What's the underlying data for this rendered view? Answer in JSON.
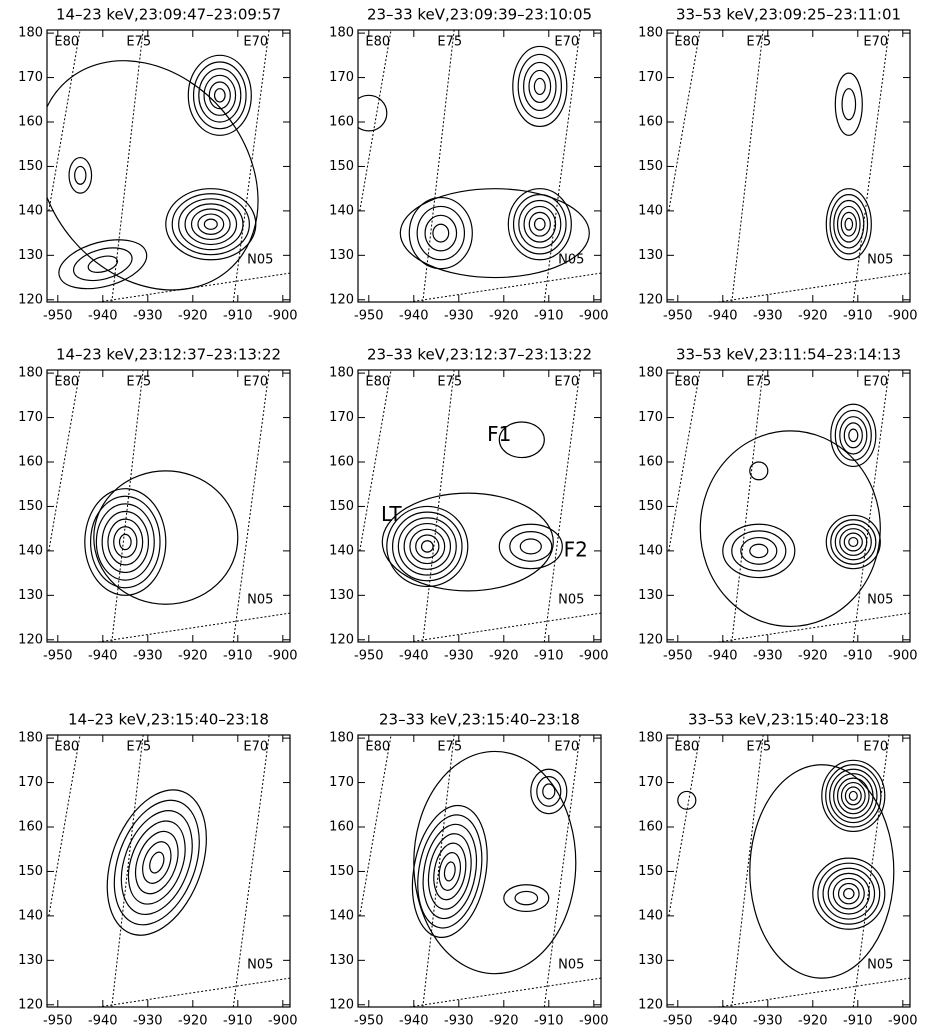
{
  "chart_data": [
    {
      "type": "contour",
      "title": "14–23 keV,23:09:47–23:09:57",
      "xlim": [
        -952.4,
        -898.4
      ],
      "ylim": [
        119.5,
        180.7
      ],
      "xticks": [
        -950,
        -940,
        -930,
        -920,
        -910,
        -900
      ],
      "yticks": [
        120,
        130,
        140,
        150,
        160,
        170,
        180
      ],
      "grid_labels": [
        "E80",
        "E75",
        "E70",
        "N05"
      ]
    },
    {
      "type": "contour",
      "title": "23–33 keV,23:09:39–23:10:05",
      "xlim": [
        -952.4,
        -898.4
      ],
      "ylim": [
        119.5,
        180.7
      ],
      "xticks": [
        -950,
        -940,
        -930,
        -920,
        -910,
        -900
      ],
      "yticks": [
        120,
        130,
        140,
        150,
        160,
        170,
        180
      ],
      "grid_labels": [
        "E80",
        "E75",
        "E70",
        "N05"
      ]
    },
    {
      "type": "contour",
      "title": "33–53 keV,23:09:25–23:11:01",
      "xlim": [
        -952.4,
        -898.4
      ],
      "ylim": [
        119.5,
        180.7
      ],
      "xticks": [
        -950,
        -940,
        -930,
        -920,
        -910,
        -900
      ],
      "yticks": [
        120,
        130,
        140,
        150,
        160,
        170,
        180
      ],
      "grid_labels": [
        "E80",
        "E75",
        "E70",
        "N05"
      ]
    },
    {
      "type": "contour",
      "title": "14–23 keV,23:12:37–23:13:22",
      "xlim": [
        -952.4,
        -898.4
      ],
      "ylim": [
        119.5,
        180.7
      ],
      "xticks": [
        -950,
        -940,
        -930,
        -920,
        -910,
        -900
      ],
      "yticks": [
        120,
        130,
        140,
        150,
        160,
        170,
        180
      ],
      "grid_labels": [
        "E80",
        "E75",
        "E70",
        "N05"
      ]
    },
    {
      "type": "contour",
      "title": "23–33 keV,23:12:37–23:13:22",
      "xlim": [
        -952.4,
        -898.4
      ],
      "ylim": [
        119.5,
        180.7
      ],
      "xticks": [
        -950,
        -940,
        -930,
        -920,
        -910,
        -900
      ],
      "yticks": [
        120,
        130,
        140,
        150,
        160,
        170,
        180
      ],
      "grid_labels": [
        "E80",
        "E75",
        "E70",
        "N05"
      ],
      "annotations": [
        "F1",
        "LT",
        "F2"
      ]
    },
    {
      "type": "contour",
      "title": "33–53 keV,23:11:54–23:14:13",
      "xlim": [
        -952.4,
        -898.4
      ],
      "ylim": [
        119.5,
        180.7
      ],
      "xticks": [
        -950,
        -940,
        -930,
        -920,
        -910,
        -900
      ],
      "yticks": [
        120,
        130,
        140,
        150,
        160,
        170,
        180
      ],
      "grid_labels": [
        "E80",
        "E75",
        "E70",
        "N05"
      ]
    },
    {
      "type": "contour",
      "title": "14–23 keV,23:15:40–23:18",
      "xlim": [
        -952.4,
        -898.4
      ],
      "ylim": [
        119.5,
        180.7
      ],
      "xticks": [
        -950,
        -940,
        -930,
        -920,
        -910,
        -900
      ],
      "yticks": [
        120,
        130,
        140,
        150,
        160,
        170,
        180
      ],
      "grid_labels": [
        "E80",
        "E75",
        "E70",
        "N05"
      ]
    },
    {
      "type": "contour",
      "title": "23–33 keV,23:15:40–23:18",
      "xlim": [
        -952.4,
        -898.4
      ],
      "ylim": [
        119.5,
        180.7
      ],
      "xticks": [
        -950,
        -940,
        -930,
        -920,
        -910,
        -900
      ],
      "yticks": [
        120,
        130,
        140,
        150,
        160,
        170,
        180
      ],
      "grid_labels": [
        "E80",
        "E75",
        "E70",
        "N05"
      ]
    },
    {
      "type": "contour",
      "title": "33–53 keV,23:15:40–23:18",
      "xlim": [
        -952.4,
        -898.4
      ],
      "ylim": [
        119.5,
        180.7
      ],
      "xticks": [
        -950,
        -940,
        -930,
        -920,
        -910,
        -900
      ],
      "yticks": [
        120,
        130,
        140,
        150,
        160,
        170,
        180
      ],
      "grid_labels": [
        "E80",
        "E75",
        "E70",
        "N05"
      ]
    }
  ]
}
